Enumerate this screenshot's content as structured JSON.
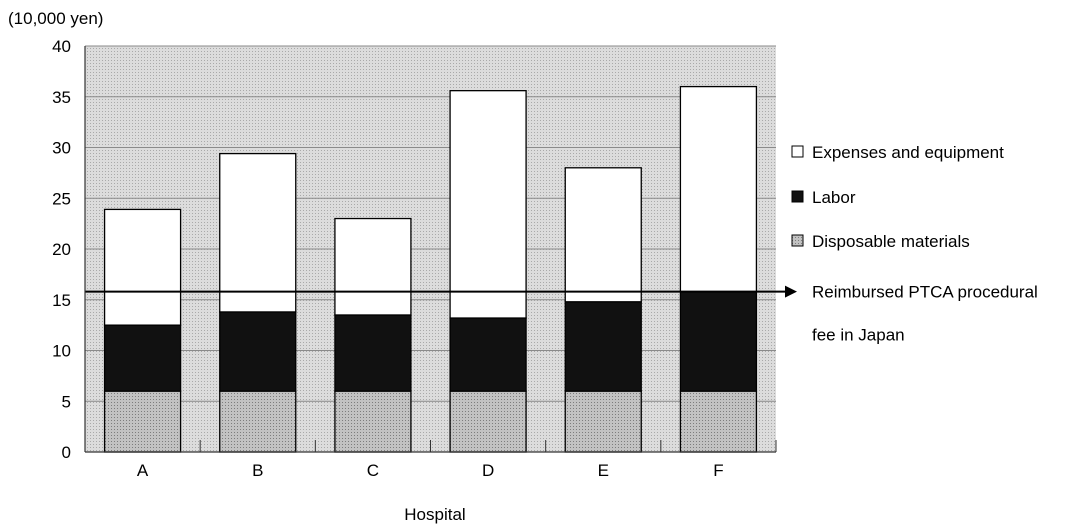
{
  "chart_data": {
    "type": "bar",
    "stacked": true,
    "unit_label": "(10,000 yen)",
    "xlabel": "Hospital",
    "ylabel": "",
    "ylim": [
      0,
      40
    ],
    "yticks": [
      0,
      5,
      10,
      15,
      20,
      25,
      30,
      35,
      40
    ],
    "grid": true,
    "legend_position": "right",
    "categories": [
      "A",
      "B",
      "C",
      "D",
      "E",
      "F"
    ],
    "series": [
      {
        "name": "Disposable materials",
        "color": "#b8b8b8",
        "values": [
          6,
          6,
          6,
          6,
          6,
          6
        ]
      },
      {
        "name": "Labor",
        "color": "#111111",
        "values": [
          6.5,
          7.8,
          7.5,
          7.2,
          8.8,
          9.8
        ]
      },
      {
        "name": "Expenses and equipment",
        "color": "#ffffff",
        "values": [
          11.4,
          15.6,
          9.5,
          22.4,
          13.2,
          20.2
        ]
      }
    ],
    "legend_order": [
      "Expenses and equipment",
      "Labor",
      "Disposable materials"
    ],
    "reference_line": {
      "value": 15.8,
      "label_lines": [
        "Reimbursed PTCA procedural",
        "fee in Japan"
      ]
    }
  }
}
